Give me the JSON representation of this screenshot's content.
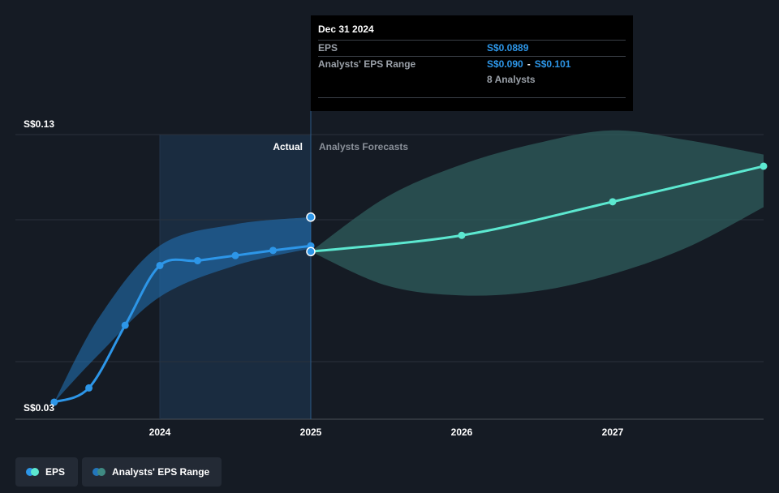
{
  "chart_data": {
    "type": "line",
    "y_top_label": "S$0.13",
    "y_bottom_label": "S$0.03",
    "ylim": [
      0.03,
      0.13
    ],
    "x_ticks": [
      "2024",
      "2025",
      "2026",
      "2027"
    ],
    "x_tick_values": [
      2024.0,
      2025.0,
      2026.0,
      2027.0
    ],
    "region_labels": {
      "actual": "Actual",
      "forecast": "Analysts Forecasts"
    },
    "series": [
      {
        "name": "EPS",
        "kind": "actual",
        "color": "#2d96e8",
        "points": [
          {
            "x": 2023.3,
            "y": 0.036
          },
          {
            "x": 2023.53,
            "y": 0.041
          },
          {
            "x": 2023.77,
            "y": 0.063
          },
          {
            "x": 2024.0,
            "y": 0.084
          },
          {
            "x": 2024.25,
            "y": 0.0857
          },
          {
            "x": 2024.5,
            "y": 0.0875
          },
          {
            "x": 2024.75,
            "y": 0.0893
          },
          {
            "x": 2025.0,
            "y": 0.0909
          }
        ]
      },
      {
        "name": "EPS",
        "kind": "forecast",
        "color": "#5ce8d0",
        "points": [
          {
            "x": 2025.0,
            "y": 0.0889
          },
          {
            "x": 2026.0,
            "y": 0.0946
          },
          {
            "x": 2027.0,
            "y": 0.1064
          },
          {
            "x": 2028.0,
            "y": 0.1189
          }
        ]
      },
      {
        "name": "Analysts' EPS Range",
        "kind": "actual_range",
        "color": "#2376bb",
        "upper": [
          {
            "x": 2023.3,
            "y": 0.036
          },
          {
            "x": 2023.6,
            "y": 0.066
          },
          {
            "x": 2024.0,
            "y": 0.091
          },
          {
            "x": 2024.5,
            "y": 0.0985
          },
          {
            "x": 2025.0,
            "y": 0.101
          }
        ],
        "lower": [
          {
            "x": 2023.3,
            "y": 0.036
          },
          {
            "x": 2023.6,
            "y": 0.053
          },
          {
            "x": 2024.0,
            "y": 0.073
          },
          {
            "x": 2024.5,
            "y": 0.084
          },
          {
            "x": 2025.0,
            "y": 0.09
          }
        ]
      },
      {
        "name": "Analysts' EPS Range",
        "kind": "forecast_range",
        "color": "#2f5d5c",
        "upper": [
          {
            "x": 2025.0,
            "y": 0.0889
          },
          {
            "x": 2025.5,
            "y": 0.108
          },
          {
            "x": 2026.0,
            "y": 0.1195
          },
          {
            "x": 2026.5,
            "y": 0.127
          },
          {
            "x": 2027.0,
            "y": 0.1315
          },
          {
            "x": 2027.5,
            "y": 0.128
          },
          {
            "x": 2028.0,
            "y": 0.123
          }
        ],
        "lower": [
          {
            "x": 2025.0,
            "y": 0.0889
          },
          {
            "x": 2025.5,
            "y": 0.077
          },
          {
            "x": 2026.0,
            "y": 0.0735
          },
          {
            "x": 2026.5,
            "y": 0.075
          },
          {
            "x": 2027.0,
            "y": 0.081
          },
          {
            "x": 2027.5,
            "y": 0.0905
          },
          {
            "x": 2028.0,
            "y": 0.1045
          }
        ]
      }
    ],
    "highlight_upper": {
      "x": 2025.0,
      "y": 0.101
    },
    "highlight_eps": {
      "x": 2025.0,
      "y": 0.0889
    }
  },
  "tooltip": {
    "date": "Dec 31 2024",
    "eps_label": "EPS",
    "eps_value": "S$0.0889",
    "range_label": "Analysts' EPS Range",
    "range_low": "S$0.090",
    "range_sep": "-",
    "range_high": "S$0.101",
    "analysts": "8 Analysts"
  },
  "legend": {
    "eps_label": "EPS",
    "range_label": "Analysts' EPS Range",
    "eps_colors": [
      "#2d96e8",
      "#5ce8d0"
    ],
    "range_colors": [
      "#2376bb",
      "#3f8a82"
    ]
  }
}
